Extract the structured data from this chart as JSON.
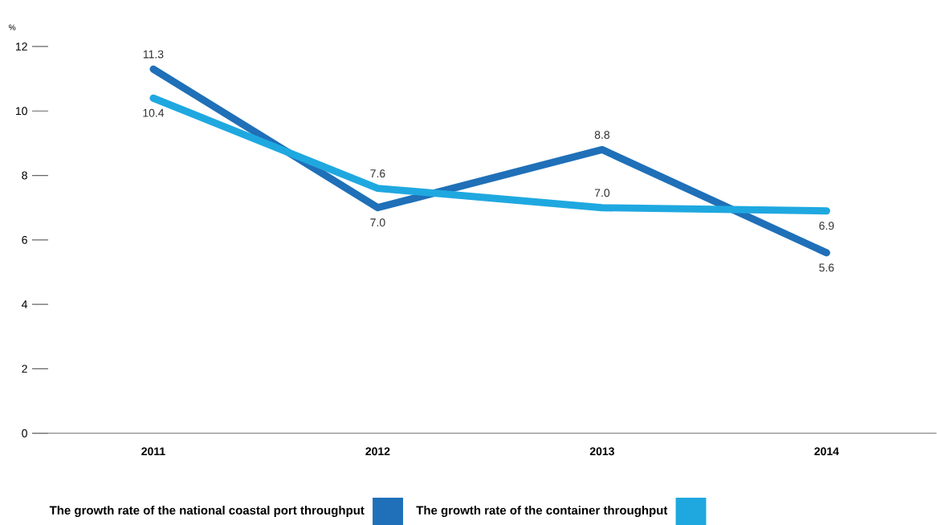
{
  "chart_data": {
    "type": "line",
    "ylabel": "%",
    "categories": [
      "2011",
      "2012",
      "2013",
      "2014"
    ],
    "series": [
      {
        "name": "The growth rate of the national coastal port throughput",
        "color": "#1f70b8",
        "values": [
          11.3,
          7.0,
          8.8,
          5.6
        ],
        "value_labels": [
          "11.3",
          "7.0",
          "8.8",
          "5.6"
        ]
      },
      {
        "name": "The growth rate of the container throughput",
        "color": "#1fa8e0",
        "values": [
          10.4,
          7.6,
          7.0,
          6.9
        ],
        "value_labels": [
          "10.4",
          "7.6",
          "7.0",
          "6.9"
        ]
      }
    ],
    "ylim": [
      0,
      12
    ],
    "yticks": [
      0,
      2,
      4,
      6,
      8,
      10,
      12
    ],
    "grid": false,
    "legend": "bottom",
    "marker": "none",
    "line_style": "solid"
  }
}
